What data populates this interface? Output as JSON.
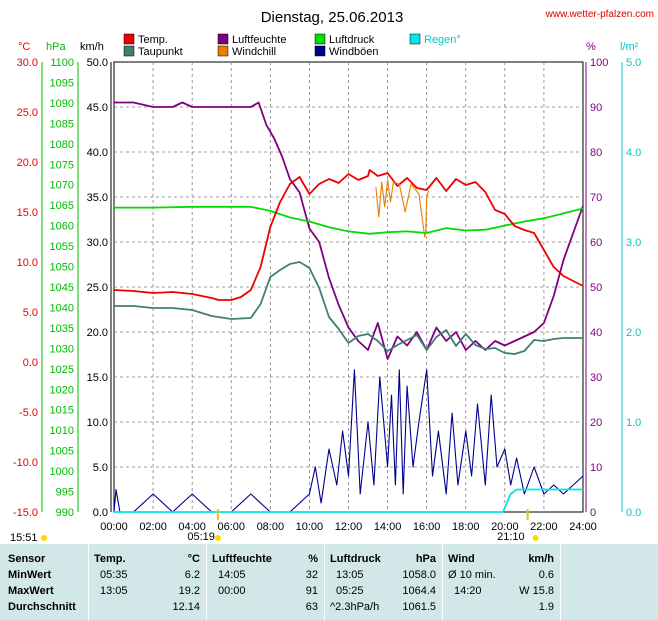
{
  "title": "Dienstag, 25.06.2013",
  "source": "www.wetter-pfalzen.com",
  "colors": {
    "temp": "#ee0000",
    "taupunkt": "#3e7f73",
    "luftfeuchte": "#7f007f",
    "windchill": "#e87e00",
    "luftdruck": "#00dd00",
    "windboeen": "#00008f",
    "regen": "#00e6e6",
    "grid": "#808080",
    "axis_c": "#ee0000",
    "axis_hpa": "#00bb00",
    "axis_kmh": "#000000",
    "axis_pct": "#7f007f",
    "axis_lm2": "#00c8c8"
  },
  "legend": [
    {
      "label": "Temp.",
      "color": "#ee0000"
    },
    {
      "label": "Taupunkt",
      "color": "#3e7f73"
    },
    {
      "label": "Luftfeuchte",
      "color": "#7f007f"
    },
    {
      "label": "Windchill",
      "color": "#e87e00"
    },
    {
      "label": "Luftdruck",
      "color": "#00dd00"
    },
    {
      "label": "Windböen",
      "color": "#00008f"
    },
    {
      "label": "Regen°",
      "color": "#00e6e6"
    }
  ],
  "chart_data": {
    "type": "line",
    "xlabel": "",
    "x_ticks": [
      "00:00",
      "02:00",
      "04:00",
      "06:00",
      "08:00",
      "10:00",
      "12:00",
      "14:00",
      "16:00",
      "18:00",
      "20:00",
      "22:00",
      "24:00"
    ],
    "axes": {
      "celsius": {
        "unit": "°C",
        "range": [
          -15,
          30
        ],
        "ticks": [
          "30.0",
          "25.0",
          "20.0",
          "15.0",
          "10.0",
          "5.0",
          "0.0",
          "-5.0",
          "-10.0",
          "-15.0"
        ]
      },
      "hpa": {
        "unit": "hPa",
        "range": [
          990,
          1100
        ],
        "ticks": [
          "1100",
          "1095",
          "1090",
          "1085",
          "1080",
          "1075",
          "1070",
          "1065",
          "1060",
          "1055",
          "1050",
          "1045",
          "1040",
          "1035",
          "1030",
          "1025",
          "1020",
          "1015",
          "1010",
          "1005",
          "1000",
          "995",
          "990"
        ]
      },
      "kmh": {
        "unit": "km/h",
        "range": [
          0,
          50
        ],
        "ticks": [
          "50.0",
          "45.0",
          "40.0",
          "35.0",
          "30.0",
          "25.0",
          "20.0",
          "15.0",
          "10.0",
          "5.0",
          "0.0"
        ]
      },
      "percent": {
        "unit": "%",
        "range": [
          0,
          100
        ],
        "ticks": [
          "100",
          "90",
          "80",
          "70",
          "60",
          "50",
          "40",
          "30",
          "20",
          "10",
          "0"
        ]
      },
      "rain": {
        "unit": "l/m²",
        "range": [
          0,
          5
        ],
        "ticks": [
          "5.0",
          "4.0",
          "3.0",
          "2.0",
          "1.0",
          "0.0"
        ]
      }
    },
    "series": [
      {
        "name": "Temp.",
        "axis": "celsius",
        "x": [
          0,
          1,
          2,
          3,
          4,
          5,
          5.35,
          6,
          6.5,
          7,
          7.5,
          8,
          8.5,
          9,
          9.5,
          10,
          10.5,
          11,
          11.5,
          12,
          12.5,
          13,
          13.08,
          13.5,
          14,
          14.5,
          15,
          15.5,
          16,
          16.5,
          17,
          17.5,
          18,
          18.5,
          19,
          19.5,
          20,
          20.5,
          21,
          21.5,
          22,
          22.5,
          23,
          23.5,
          24
        ],
        "y": [
          7.2,
          7.1,
          6.9,
          7.0,
          6.8,
          6.4,
          6.2,
          6.2,
          6.5,
          7.2,
          9.5,
          13.5,
          16.0,
          17.8,
          18.5,
          16.8,
          17.8,
          18.3,
          17.9,
          18.8,
          18.2,
          18.6,
          19.2,
          18.6,
          18.9,
          17.6,
          18.4,
          17.4,
          17.2,
          18.4,
          17.1,
          18.3,
          17.7,
          18.0,
          17.0,
          15.2,
          14.8,
          13.6,
          13.2,
          12.9,
          11.2,
          9.5,
          8.6,
          8.1,
          7.6
        ]
      },
      {
        "name": "Taupunkt",
        "axis": "celsius",
        "x": [
          0,
          1,
          2,
          3,
          4,
          5,
          6,
          7,
          7.5,
          8,
          8.5,
          9,
          9.5,
          10,
          10.5,
          11,
          11.5,
          12,
          12.5,
          13,
          13.5,
          14,
          14.5,
          15,
          15.5,
          16,
          16.5,
          17,
          17.5,
          18,
          18.5,
          19,
          19.5,
          20,
          20.5,
          21,
          21.5,
          22,
          22.5,
          23,
          23.5,
          24
        ],
        "y": [
          5.6,
          5.6,
          5.4,
          5.4,
          5.2,
          4.6,
          4.3,
          4.4,
          5.8,
          8.5,
          9.2,
          9.8,
          10.0,
          9.4,
          7.4,
          4.5,
          3.3,
          1.9,
          2.6,
          2.8,
          2.1,
          1.1,
          1.7,
          2.2,
          2.7,
          1.2,
          2.5,
          3.2,
          1.6,
          2.8,
          1.7,
          1.3,
          1.4,
          0.9,
          0.8,
          1.1,
          2.2,
          2.1,
          2.3,
          2.4,
          2.4,
          2.4
        ]
      },
      {
        "name": "Luftfeuchte",
        "axis": "percent",
        "x": [
          0,
          1,
          2,
          3,
          3.5,
          4,
          5,
          6,
          7,
          7.4,
          7.8,
          8.2,
          8.6,
          9,
          9.5,
          10,
          10.5,
          11,
          11.5,
          12,
          12.5,
          13,
          13.5,
          14,
          14.5,
          15,
          15.5,
          16,
          16.5,
          17,
          17.5,
          18,
          18.5,
          19,
          19.5,
          20,
          20.5,
          21,
          21.5,
          22,
          22.5,
          23,
          23.5,
          24
        ],
        "y": [
          91,
          91,
          90,
          90,
          91,
          90,
          90,
          90,
          90,
          91,
          86,
          83,
          79,
          74,
          71,
          63,
          60,
          52,
          46,
          41,
          38,
          36,
          42,
          34,
          39,
          37,
          40,
          36,
          41,
          38,
          40,
          36,
          38,
          36,
          38,
          37,
          38,
          39,
          40,
          42,
          48,
          56,
          62,
          68
        ]
      },
      {
        "name": "Windchill",
        "axis": "celsius",
        "x": [
          13.4,
          13.55,
          13.7,
          13.85,
          14,
          14.15,
          14.3,
          14.6,
          14.9,
          15.2,
          15.6,
          15.9,
          15.95,
          16,
          16.1
        ],
        "y": [
          17.5,
          14.5,
          18.0,
          15.5,
          18.2,
          16.0,
          18.0,
          17.8,
          15.0,
          17.8,
          16.8,
          12.5,
          13.0,
          16.5,
          17.1
        ]
      },
      {
        "name": "Luftdruck",
        "axis": "hpa",
        "x": [
          0,
          2,
          4,
          6,
          7,
          8,
          9,
          10,
          11,
          12,
          13.08,
          14,
          15,
          16,
          17,
          18,
          19,
          20,
          21,
          22,
          23,
          24
        ],
        "y": [
          1064.4,
          1064.4,
          1064.6,
          1064.6,
          1064.6,
          1063.6,
          1062.0,
          1061.0,
          1059.6,
          1058.6,
          1058.0,
          1058.4,
          1058.6,
          1058.2,
          1059.4,
          1058.8,
          1059.0,
          1060.0,
          1061.0,
          1061.8,
          1063.0,
          1064.2
        ]
      },
      {
        "name": "Windböen",
        "axis": "kmh",
        "x": [
          0,
          0.1,
          0.3,
          1,
          2,
          3,
          4,
          5,
          6,
          7,
          8,
          9,
          10,
          10.3,
          10.6,
          11,
          11.4,
          11.7,
          12,
          12.3,
          12.6,
          13,
          13.3,
          13.6,
          14,
          14.2,
          14.4,
          14.6,
          14.8,
          15,
          15.3,
          15.6,
          16,
          16.3,
          16.6,
          17,
          17.3,
          17.6,
          18,
          18.3,
          18.6,
          19,
          19.3,
          19.6,
          20,
          20.3,
          20.6,
          21,
          21.5,
          22,
          22.5,
          23,
          23.5,
          24
        ],
        "y": [
          0,
          2.5,
          0,
          0,
          2,
          0,
          2,
          0,
          0,
          2,
          0,
          0,
          2,
          5,
          1,
          7,
          3,
          9,
          4,
          15.8,
          2,
          10,
          3,
          15,
          5,
          13,
          3,
          15.8,
          2,
          14,
          5,
          10,
          15.8,
          4,
          9,
          2,
          11,
          3,
          9,
          4,
          12,
          3,
          13,
          5,
          7,
          3,
          6,
          2,
          5,
          2,
          3,
          2,
          3,
          4
        ]
      },
      {
        "name": "Regen°",
        "axis": "rain",
        "x": [
          0,
          19.9,
          20.1,
          20.3,
          20.6,
          21,
          21.5,
          22,
          23,
          24
        ],
        "y": [
          0,
          0,
          0.1,
          0.2,
          0.25,
          0.25,
          0.25,
          0.25,
          0.25,
          0.25
        ]
      }
    ],
    "markers": {
      "sunrise": "05:19",
      "sunset": "21:10",
      "start": "15:51"
    }
  },
  "table": {
    "headers": {
      "sensor": "Sensor",
      "temp": "Temp.",
      "temp_unit": "°C",
      "humidity": "Luftfeuchte",
      "humidity_unit": "%",
      "pressure": "Luftdruck",
      "pressure_unit": "hPa",
      "wind": "Wind",
      "wind_unit": "km/h"
    },
    "rows": [
      {
        "label": "MinWert",
        "t_time": "05:35",
        "t_val": "6.2",
        "h_time": "14:05",
        "h_val": "32",
        "p_time": "13:05",
        "p_val": "1058.0",
        "w_time": "Ø 10 min.",
        "w_val": "0.6"
      },
      {
        "label": "MaxWert",
        "t_time": "13:05",
        "t_val": "19.2",
        "h_time": "00:00",
        "h_val": "91",
        "p_time": "05:25",
        "p_val": "1064.4",
        "w_time": "14:20",
        "w_val": "W 15.8"
      },
      {
        "label": "Durchschnitt",
        "t_time": "",
        "t_val": "12.14",
        "h_time": "",
        "h_val": "63",
        "p_time": "^2.3hPa/h",
        "p_val": "1061.5",
        "w_time": "",
        "w_val": "1.9"
      }
    ]
  }
}
